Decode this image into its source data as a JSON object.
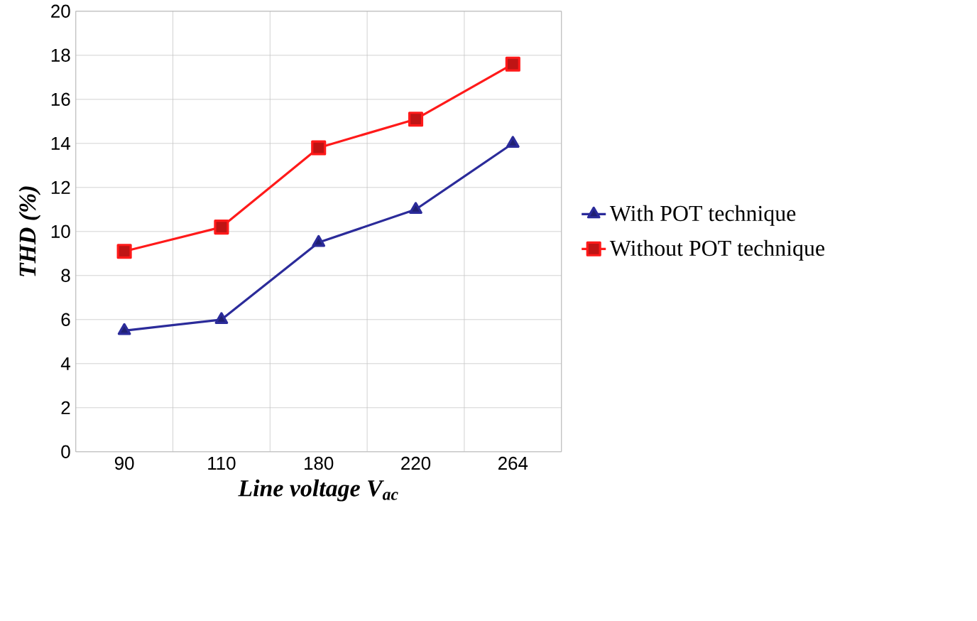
{
  "chart_data": {
    "type": "line",
    "xlabel": "*Line voltage V$_{ac}$*",
    "ylabel": "*THD (%)*",
    "categories": [
      "90",
      "110",
      "180",
      "220",
      "264"
    ],
    "series": [
      {
        "name": "With POT technique",
        "color": "#2b2b9a",
        "marker": "triangle",
        "values": [
          5.5,
          6.0,
          9.5,
          11.0,
          14.0
        ]
      },
      {
        "name": "Without POT technique",
        "color": "#ff1a1a",
        "marker": "square",
        "values": [
          9.1,
          10.2,
          13.8,
          15.1,
          17.6
        ]
      }
    ],
    "ylim": [
      0,
      20
    ],
    "yticks": [
      0,
      2,
      4,
      6,
      8,
      10,
      12,
      14,
      16,
      18,
      20
    ],
    "grid": true,
    "legend": "right",
    "line_style": "solid"
  }
}
